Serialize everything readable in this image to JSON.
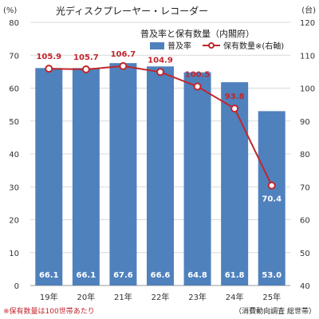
{
  "chart_data": {
    "type": "bar",
    "title": "光ディスクプレーヤー・レコーダー",
    "subtitle": "普及率と保有数量（内閣府）",
    "categories": [
      "19年",
      "20年",
      "21年",
      "22年",
      "23年",
      "24年",
      "25年"
    ],
    "series": [
      {
        "name": "普及率",
        "type": "bar",
        "axis": "left",
        "color": "#4f81bd",
        "values": [
          66.1,
          66.1,
          67.6,
          66.6,
          64.8,
          61.8,
          53.0
        ],
        "labels": [
          "66.1",
          "66.1",
          "67.6",
          "66.6",
          "64.8",
          "61.8",
          "53.0"
        ]
      },
      {
        "name": "保有数量※(右軸)",
        "type": "line",
        "axis": "right",
        "color": "#c0262d",
        "values": [
          105.9,
          105.7,
          106.7,
          104.9,
          100.5,
          93.8,
          70.4
        ],
        "labels": [
          "105.9",
          "105.7",
          "106.7",
          "104.9",
          "100.5",
          "93.8",
          "70.4"
        ]
      }
    ],
    "y_left": {
      "unit": "(%)",
      "range": [
        0,
        80
      ],
      "ticks": [
        "0",
        "10",
        "20",
        "30",
        "40",
        "50",
        "60",
        "70",
        "80"
      ]
    },
    "y_right": {
      "unit": "(台)",
      "range": [
        40,
        120
      ],
      "ticks": [
        "40",
        "50",
        "60",
        "70",
        "80",
        "90",
        "100",
        "110",
        "120"
      ]
    },
    "grid": true,
    "legend": "top-right",
    "footnote_left": "※保有数量は100世帯あたり",
    "footnote_right": "（消費動向調査 総世帯）",
    "label_color": "#c0262d"
  }
}
